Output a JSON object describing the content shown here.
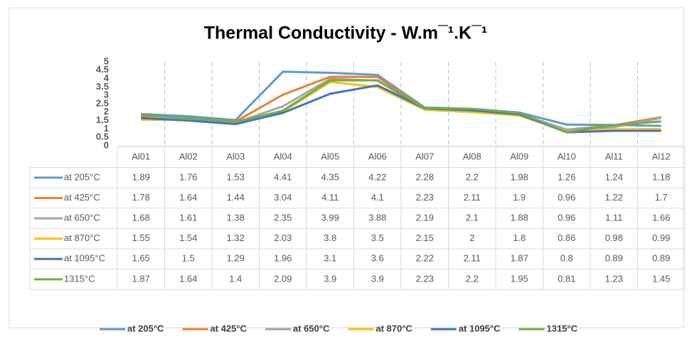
{
  "chart_data": {
    "type": "line",
    "title": "Thermal Conductivity - W.m¯¹.K¯¹",
    "categories": [
      "Al01",
      "Al02",
      "Al03",
      "Al04",
      "Al05",
      "Al06",
      "Al07",
      "Al08",
      "Al09",
      "Al10",
      "Al11",
      "Al12"
    ],
    "series": [
      {
        "name": "at 205°C",
        "color": "#5b9bd5",
        "values": [
          1.89,
          1.76,
          1.53,
          4.41,
          4.35,
          4.22,
          2.28,
          2.2,
          1.98,
          1.26,
          1.24,
          1.18
        ]
      },
      {
        "name": "at 425°C",
        "color": "#ed7d31",
        "values": [
          1.78,
          1.64,
          1.44,
          3.04,
          4.11,
          4.1,
          2.23,
          2.11,
          1.9,
          0.96,
          1.22,
          1.7
        ]
      },
      {
        "name": "at 650°C",
        "color": "#a5a5a5",
        "values": [
          1.68,
          1.61,
          1.38,
          2.35,
          3.99,
          3.88,
          2.19,
          2.1,
          1.88,
          0.96,
          1.11,
          1.66
        ]
      },
      {
        "name": "at 870°C",
        "color": "#ffc000",
        "values": [
          1.55,
          1.54,
          1.32,
          2.03,
          3.8,
          3.5,
          2.15,
          2,
          1.8,
          0.86,
          0.98,
          0.99
        ]
      },
      {
        "name": "at 1095°C",
        "color": "#4472c4",
        "values": [
          1.65,
          1.5,
          1.29,
          1.96,
          3.1,
          3.6,
          2.22,
          2.11,
          1.87,
          0.8,
          0.89,
          0.89
        ]
      },
      {
        "name": "1315°C",
        "color": "#70ad47",
        "values": [
          1.87,
          1.64,
          1.4,
          2.09,
          3.9,
          3.9,
          2.23,
          2.2,
          1.95,
          0.81,
          1.23,
          1.45
        ]
      }
    ],
    "ylim": [
      0,
      5
    ],
    "yticks": [
      0,
      0.5,
      1,
      1.5,
      2,
      2.5,
      3,
      3.5,
      4,
      4.5,
      5
    ],
    "grid": false,
    "data_table": true,
    "legend": "bottom"
  }
}
